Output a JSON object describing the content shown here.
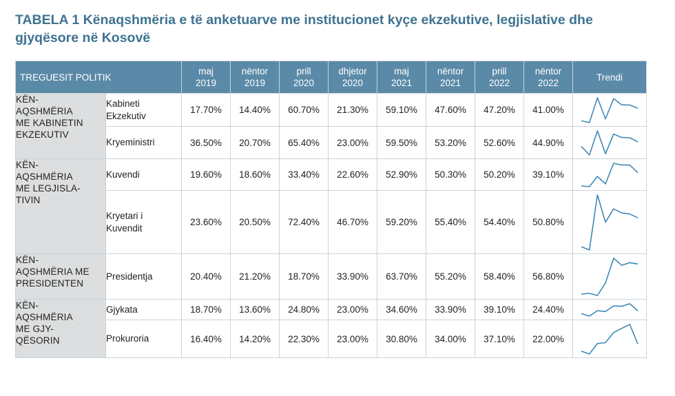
{
  "title": "TABELA 1 Kënaqshmëria e të anketuarve me institucionet kyçe ekzekutive, legjislative dhe gjyqësore në Kosovë",
  "header": {
    "indicator": "TREGUESIT POLITIK",
    "periods": [
      {
        "month": "maj",
        "year": "2019"
      },
      {
        "month": "nëntor",
        "year": "2019"
      },
      {
        "month": "prill",
        "year": "2020"
      },
      {
        "month": "dhjetor",
        "year": "2020"
      },
      {
        "month": "maj",
        "year": "2021"
      },
      {
        "month": "nëntor",
        "year": "2021"
      },
      {
        "month": "prill",
        "year": "2022"
      },
      {
        "month": "nëntor",
        "year": "2022"
      }
    ],
    "trend": "Trendi"
  },
  "groups": [
    {
      "label_lines": [
        "KËN-",
        "AQSHMËRIA",
        "ME KABINETIN",
        "EKZEKUTIV"
      ]
    },
    {
      "label_lines": [
        "KËN-",
        "AQSHMËRIA",
        "ME LEGJISLA-",
        "TIVIN"
      ]
    },
    {
      "label_lines": [
        "KËN-",
        "AQSHMËRIA ME",
        "PRESIDENTEN"
      ]
    },
    {
      "label_lines": [
        "KËN-",
        "AQSHMËRIA",
        "ME GJY-",
        "QËSORIN"
      ]
    }
  ],
  "rows": [
    {
      "label_lines": [
        "Kabineti",
        "Ekzekutiv"
      ],
      "values": [
        "17.70%",
        "14.40%",
        "60.70%",
        "21.30%",
        "59.10%",
        "47.60%",
        "47.20%",
        "41.00%"
      ],
      "trend": [
        17.7,
        14.4,
        60.7,
        21.3,
        59.1,
        47.6,
        47.2,
        41.0
      ]
    },
    {
      "label_lines": [
        "Kryeministri"
      ],
      "values": [
        "36.50%",
        "20.70%",
        "65.40%",
        "23.00%",
        "59.50%",
        "53.20%",
        "52.60%",
        "44.90%"
      ],
      "trend": [
        36.5,
        20.7,
        65.4,
        23.0,
        59.5,
        53.2,
        52.6,
        44.9
      ]
    },
    {
      "label_lines": [
        "Kuvendi"
      ],
      "values": [
        "19.60%",
        "18.60%",
        "33.40%",
        "22.60%",
        "52.90%",
        "50.30%",
        "50.20%",
        "39.10%"
      ],
      "trend": [
        19.6,
        18.6,
        33.4,
        22.6,
        52.9,
        50.3,
        50.2,
        39.1
      ]
    },
    {
      "label_lines": [
        "Kryetari i",
        "Kuvendit"
      ],
      "values": [
        "23.60%",
        "20.50%",
        "72.40%",
        "46.70%",
        "59.20%",
        "55.40%",
        "54.40%",
        "50.80%"
      ],
      "trend": [
        23.6,
        20.5,
        72.4,
        46.7,
        59.2,
        55.4,
        54.4,
        50.8
      ]
    },
    {
      "label_lines": [
        "Presidentja"
      ],
      "values": [
        "20.40%",
        "21.20%",
        "18.70%",
        "33.90%",
        "63.70%",
        "55.20%",
        "58.40%",
        "56.80%"
      ],
      "trend": [
        20.4,
        21.2,
        18.7,
        33.9,
        63.7,
        55.2,
        58.4,
        56.8
      ]
    },
    {
      "label_lines": [
        "Gjykata"
      ],
      "values": [
        "18.70%",
        "13.60%",
        "24.80%",
        "23.00%",
        "34.60%",
        "33.90%",
        "39.10%",
        "24.40%"
      ],
      "trend": [
        18.7,
        13.6,
        24.8,
        23.0,
        34.6,
        33.9,
        39.1,
        24.4
      ]
    },
    {
      "label_lines": [
        "Prokuroria"
      ],
      "values": [
        "16.40%",
        "14.20%",
        "22.30%",
        "23.00%",
        "30.80%",
        "34.00%",
        "37.10%",
        "22.00%"
      ],
      "trend": [
        16.4,
        14.2,
        22.3,
        23.0,
        30.8,
        34.0,
        37.1,
        22.0
      ]
    }
  ],
  "colors": {
    "header_bg": "#5b8aa8",
    "title": "#3f7391",
    "group_bg": "#dcdedf",
    "sparkline": "#3f88b8"
  }
}
